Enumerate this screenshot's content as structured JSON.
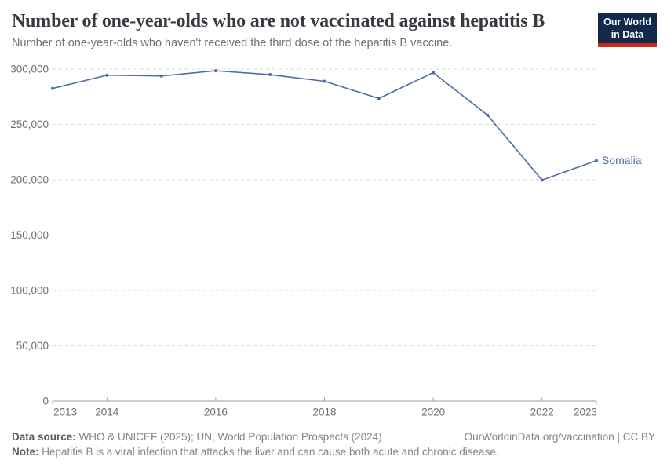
{
  "header": {
    "title": "Number of one-year-olds who are not vaccinated against hepatitis B",
    "subtitle": "Number of one-year-olds who haven't received the third dose of the hepatitis B vaccine.",
    "logo_line1": "Our World",
    "logo_line2": "in Data"
  },
  "chart_data": {
    "type": "line",
    "title": "Number of one-year-olds who are not vaccinated against hepatitis B",
    "x": [
      2013,
      2014,
      2015,
      2016,
      2017,
      2018,
      2019,
      2020,
      2021,
      2022,
      2023
    ],
    "series": [
      {
        "name": "Somalia",
        "values": [
          282500,
          294500,
          293800,
          298500,
          295000,
          289000,
          273500,
          296800,
          258300,
          199700,
          217300
        ]
      }
    ],
    "xlabel": "",
    "ylabel": "",
    "xlim": [
      2013,
      2023
    ],
    "ylim": [
      0,
      300000
    ],
    "y_ticks": [
      0,
      50000,
      100000,
      150000,
      200000,
      250000,
      300000
    ],
    "x_ticks_labeled": [
      2013,
      2014,
      2016,
      2018,
      2020,
      2022,
      2023
    ],
    "grid": "horizontal-dashed",
    "legend_position": "end-of-line-label"
  },
  "footer": {
    "datasource_label": "Data source:",
    "datasource_text": " WHO & UNICEF (2025); UN, World Population Prospects (2024)",
    "link_text": "OurWorldinData.org/vaccination | CC BY",
    "note_label": "Note:",
    "note_text": " Hepatitis B is a viral infection that attacks the liver and can cause both acute and chronic disease."
  },
  "colors": {
    "series": "#4d6ba6",
    "gridline": "#dadada",
    "axis": "#9e9e9e",
    "tick_label": "#6e6e6e",
    "logo_bg": "#13294b",
    "logo_red": "#c92a1c"
  }
}
